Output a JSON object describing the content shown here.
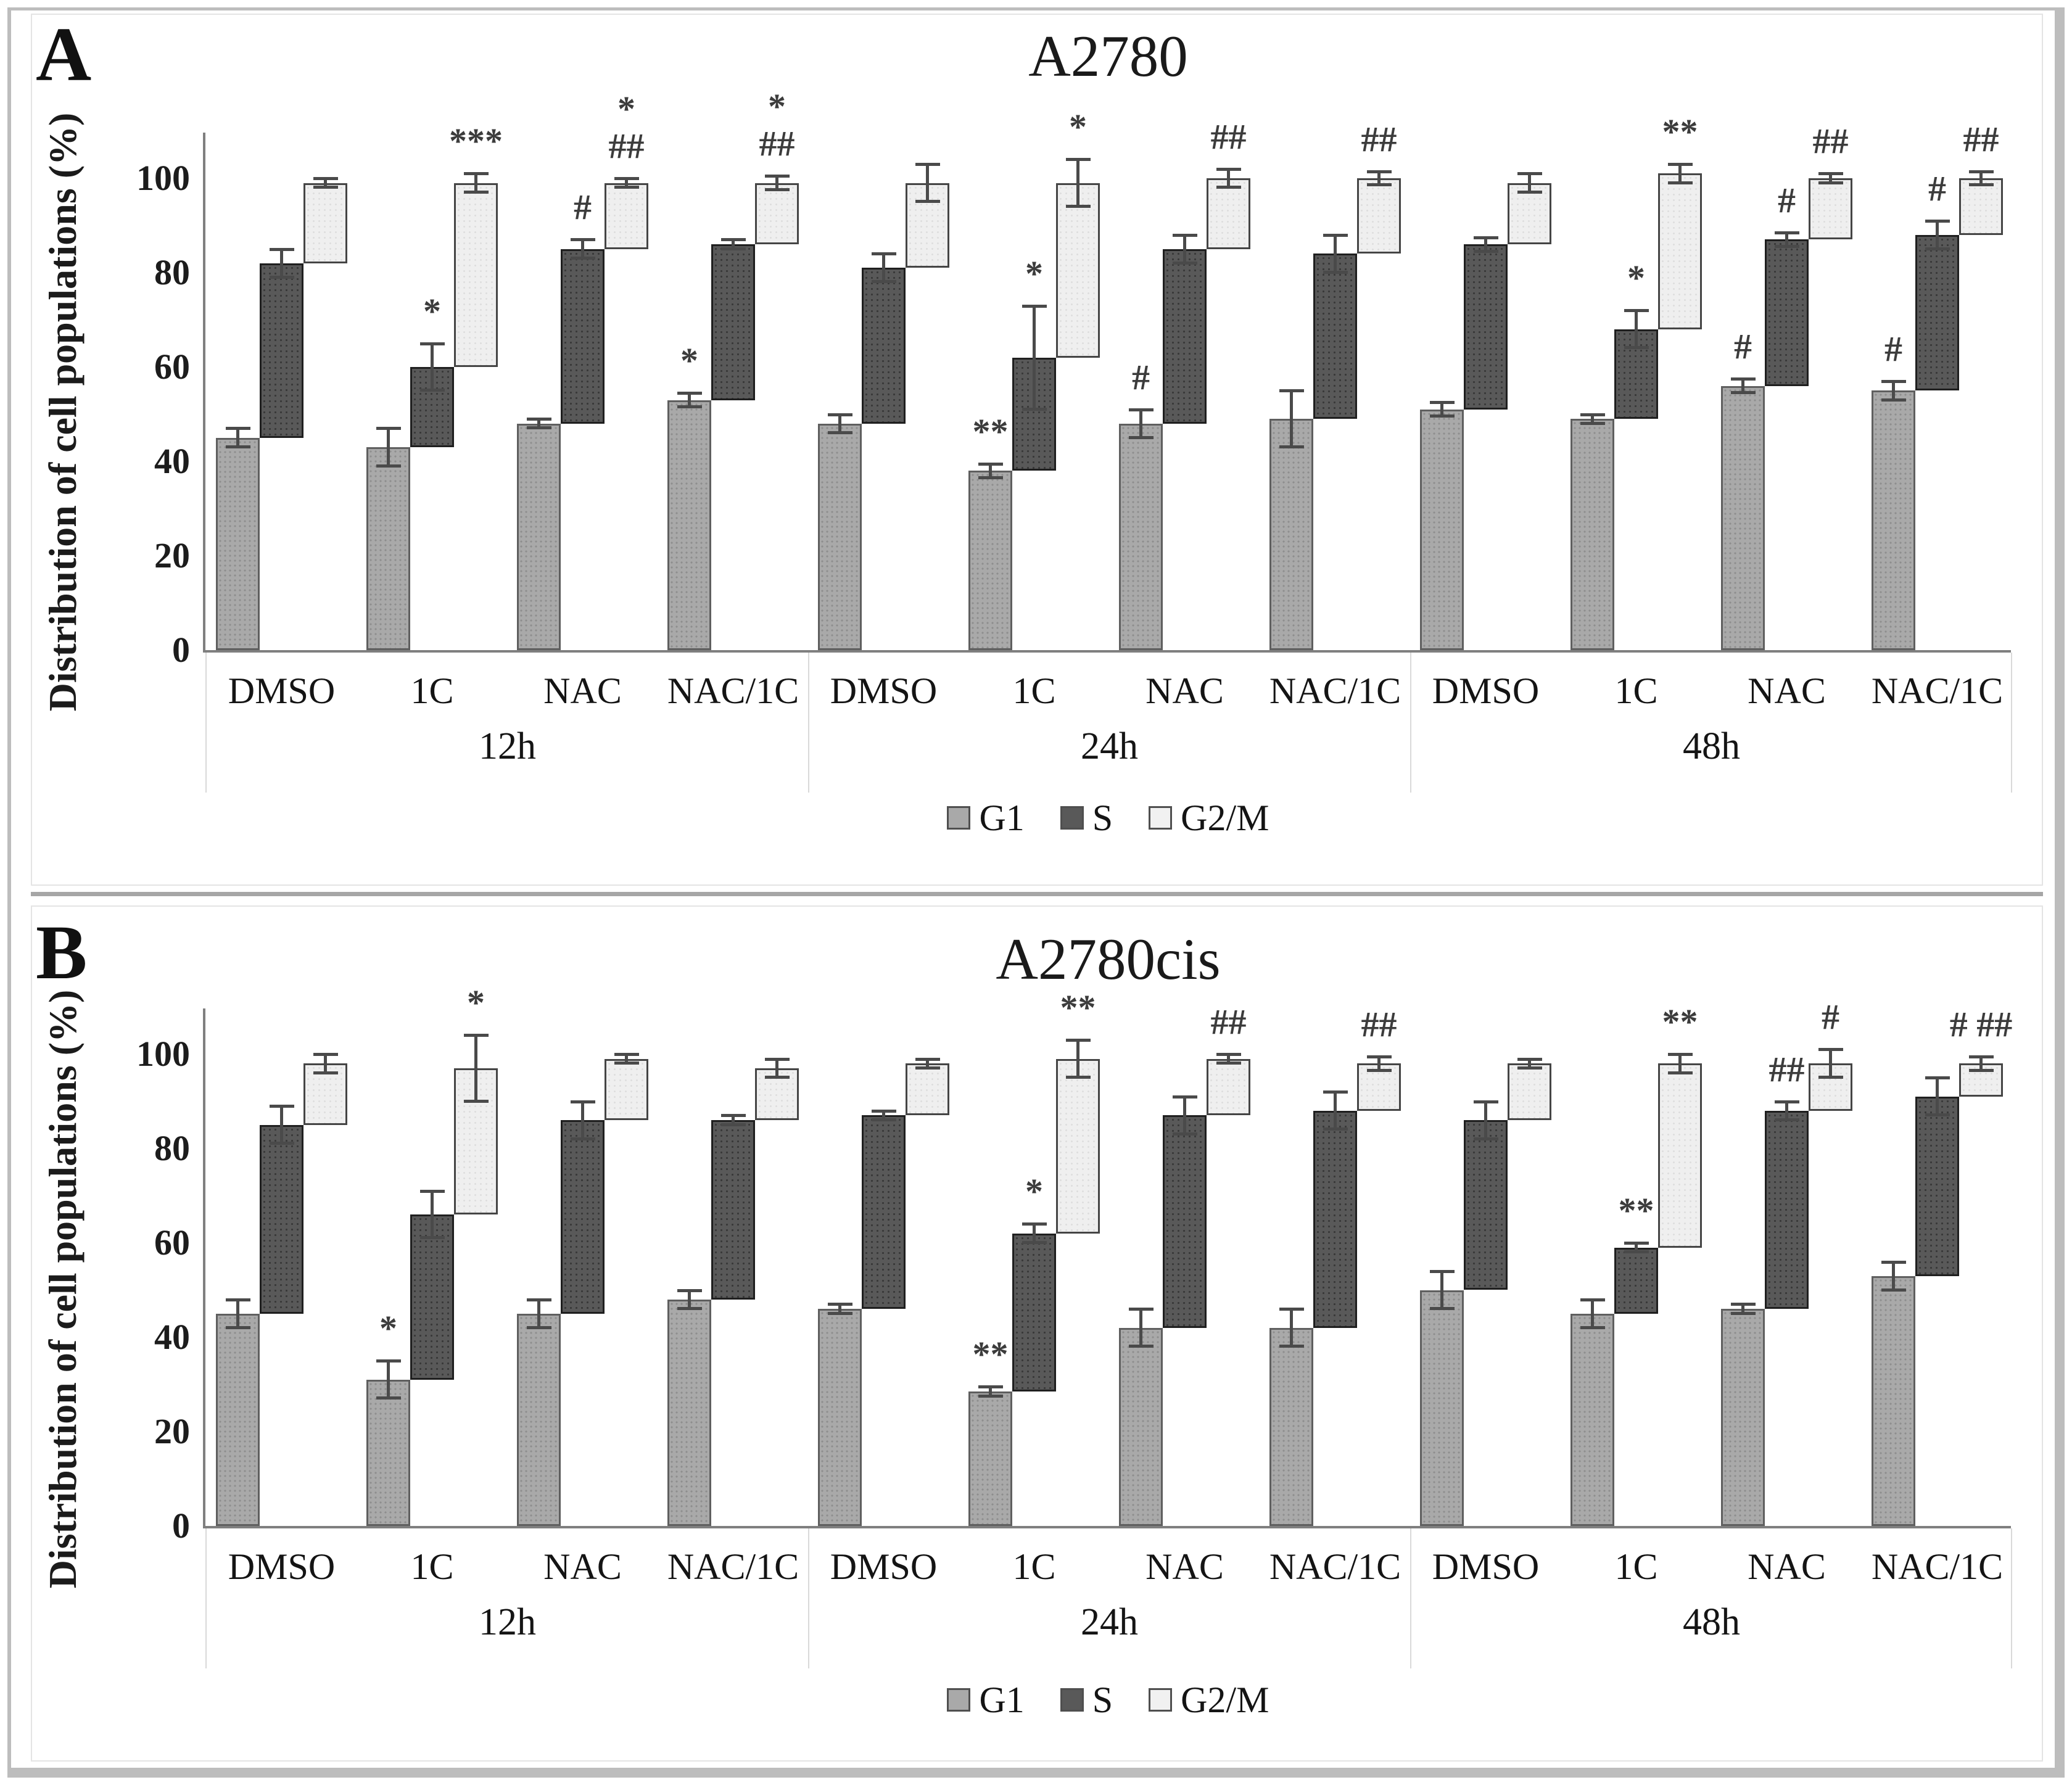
{
  "colors": {
    "g1_fill": "#a9a9a9",
    "g1_border": "#5f5f5f",
    "s_fill": "#595959",
    "s_border": "#1f1f1f",
    "g2m_fill": "#efefef",
    "g2m_border": "#454545",
    "error_bar": "#4a4a4a",
    "annotation": "#3c3c3c",
    "axis": "#7f7f7f",
    "text": "#1b1b1b",
    "separator": "#d9d9d9"
  },
  "chart_data": [
    {
      "type": "bar",
      "variant": "stepped-cumulative",
      "panel_label": "A",
      "title": "A2780",
      "ylabel": "Distribution of cell populations (%)",
      "xlabel": "",
      "ylim": [
        0,
        100
      ],
      "yticks": [
        0,
        20,
        40,
        60,
        80,
        100
      ],
      "grid": false,
      "legend_position": "bottom",
      "legend_items": [
        {
          "key": "g1",
          "label": "G1"
        },
        {
          "key": "s",
          "label": "S"
        },
        {
          "key": "g2m",
          "label": "G2/M"
        }
      ],
      "time_groups": [
        {
          "label": "12h",
          "treatments": [
            {
              "label": "DMSO",
              "segments": {
                "g1": {
                  "value": 45,
                  "err": 2,
                  "sig": []
                },
                "s": {
                  "value": 82,
                  "err": 3,
                  "sig": []
                },
                "g2m": {
                  "value": 99,
                  "err": 1,
                  "sig": []
                }
              }
            },
            {
              "label": "1C",
              "segments": {
                "g1": {
                  "value": 43,
                  "err": 4,
                  "sig": []
                },
                "s": {
                  "value": 60,
                  "err": 5,
                  "sig": [
                    "*"
                  ]
                },
                "g2m": {
                  "value": 99,
                  "err": 2,
                  "sig": [
                    "***"
                  ]
                }
              }
            },
            {
              "label": "NAC",
              "segments": {
                "g1": {
                  "value": 48,
                  "err": 1,
                  "sig": []
                },
                "s": {
                  "value": 85,
                  "err": 2,
                  "sig": [
                    "#"
                  ]
                },
                "g2m": {
                  "value": 99,
                  "err": 1,
                  "sig": [
                    "*",
                    "##"
                  ]
                }
              }
            },
            {
              "label": "NAC/1C",
              "segments": {
                "g1": {
                  "value": 53,
                  "err": 1.5,
                  "sig": [
                    "*"
                  ]
                },
                "s": {
                  "value": 86,
                  "err": 1,
                  "sig": []
                },
                "g2m": {
                  "value": 99,
                  "err": 1.5,
                  "sig": [
                    "*",
                    "##"
                  ]
                }
              }
            }
          ]
        },
        {
          "label": "24h",
          "treatments": [
            {
              "label": "DMSO",
              "segments": {
                "g1": {
                  "value": 48,
                  "err": 2,
                  "sig": []
                },
                "s": {
                  "value": 81,
                  "err": 3,
                  "sig": []
                },
                "g2m": {
                  "value": 99,
                  "err": 4,
                  "sig": []
                }
              }
            },
            {
              "label": "1C",
              "segments": {
                "g1": {
                  "value": 38,
                  "err": 1.5,
                  "sig": [
                    "**"
                  ]
                },
                "s": {
                  "value": 62,
                  "err": 11,
                  "sig": [
                    "*"
                  ]
                },
                "g2m": {
                  "value": 99,
                  "err": 5,
                  "sig": [
                    "*"
                  ]
                }
              }
            },
            {
              "label": "NAC",
              "segments": {
                "g1": {
                  "value": 48,
                  "err": 3,
                  "sig": [
                    "#"
                  ]
                },
                "s": {
                  "value": 85,
                  "err": 3,
                  "sig": []
                },
                "g2m": {
                  "value": 100,
                  "err": 2,
                  "sig": [
                    "##"
                  ]
                }
              }
            },
            {
              "label": "NAC/1C",
              "segments": {
                "g1": {
                  "value": 49,
                  "err": 6,
                  "sig": []
                },
                "s": {
                  "value": 84,
                  "err": 4,
                  "sig": []
                },
                "g2m": {
                  "value": 100,
                  "err": 1.5,
                  "sig": [
                    "##"
                  ]
                }
              }
            }
          ]
        },
        {
          "label": "48h",
          "treatments": [
            {
              "label": "DMSO",
              "segments": {
                "g1": {
                  "value": 51,
                  "err": 1.5,
                  "sig": []
                },
                "s": {
                  "value": 86,
                  "err": 1.5,
                  "sig": []
                },
                "g2m": {
                  "value": 99,
                  "err": 2,
                  "sig": []
                }
              }
            },
            {
              "label": "1C",
              "segments": {
                "g1": {
                  "value": 49,
                  "err": 1,
                  "sig": []
                },
                "s": {
                  "value": 68,
                  "err": 4,
                  "sig": [
                    "*"
                  ]
                },
                "g2m": {
                  "value": 101,
                  "err": 2,
                  "sig": [
                    "**"
                  ]
                }
              }
            },
            {
              "label": "NAC",
              "segments": {
                "g1": {
                  "value": 56,
                  "err": 1.5,
                  "sig": [
                    "#"
                  ]
                },
                "s": {
                  "value": 87,
                  "err": 1.5,
                  "sig": [
                    "#"
                  ]
                },
                "g2m": {
                  "value": 100,
                  "err": 1,
                  "sig": [
                    "##"
                  ]
                }
              }
            },
            {
              "label": "NAC/1C",
              "segments": {
                "g1": {
                  "value": 55,
                  "err": 2,
                  "sig": [
                    "#"
                  ]
                },
                "s": {
                  "value": 88,
                  "err": 3,
                  "sig": [
                    "#"
                  ]
                },
                "g2m": {
                  "value": 100,
                  "err": 1.5,
                  "sig": [
                    "##"
                  ]
                }
              }
            }
          ]
        }
      ]
    },
    {
      "type": "bar",
      "variant": "stepped-cumulative",
      "panel_label": "B",
      "title": "A2780cis",
      "ylabel": "Distribution of cell populations (%)",
      "xlabel": "",
      "ylim": [
        0,
        100
      ],
      "yticks": [
        0,
        20,
        40,
        60,
        80,
        100
      ],
      "grid": false,
      "legend_position": "bottom",
      "legend_items": [
        {
          "key": "g1",
          "label": "G1"
        },
        {
          "key": "s",
          "label": "S"
        },
        {
          "key": "g2m",
          "label": "G2/M"
        }
      ],
      "time_groups": [
        {
          "label": "12h",
          "treatments": [
            {
              "label": "DMSO",
              "segments": {
                "g1": {
                  "value": 45,
                  "err": 3,
                  "sig": []
                },
                "s": {
                  "value": 85,
                  "err": 4,
                  "sig": []
                },
                "g2m": {
                  "value": 98,
                  "err": 2,
                  "sig": []
                }
              }
            },
            {
              "label": "1C",
              "segments": {
                "g1": {
                  "value": 31,
                  "err": 4,
                  "sig": [
                    "*"
                  ]
                },
                "s": {
                  "value": 66,
                  "err": 5,
                  "sig": []
                },
                "g2m": {
                  "value": 97,
                  "err": 7,
                  "sig": [
                    "*"
                  ]
                }
              }
            },
            {
              "label": "NAC",
              "segments": {
                "g1": {
                  "value": 45,
                  "err": 3,
                  "sig": []
                },
                "s": {
                  "value": 86,
                  "err": 4,
                  "sig": []
                },
                "g2m": {
                  "value": 99,
                  "err": 1,
                  "sig": []
                }
              }
            },
            {
              "label": "NAC/1C",
              "segments": {
                "g1": {
                  "value": 48,
                  "err": 2,
                  "sig": []
                },
                "s": {
                  "value": 86,
                  "err": 1,
                  "sig": []
                },
                "g2m": {
                  "value": 97,
                  "err": 2,
                  "sig": []
                }
              }
            }
          ]
        },
        {
          "label": "24h",
          "treatments": [
            {
              "label": "DMSO",
              "segments": {
                "g1": {
                  "value": 46,
                  "err": 1,
                  "sig": []
                },
                "s": {
                  "value": 87,
                  "err": 1,
                  "sig": []
                },
                "g2m": {
                  "value": 98,
                  "err": 1,
                  "sig": []
                }
              }
            },
            {
              "label": "1C",
              "segments": {
                "g1": {
                  "value": 28.5,
                  "err": 1,
                  "sig": [
                    "**"
                  ]
                },
                "s": {
                  "value": 62,
                  "err": 2,
                  "sig": [
                    "*"
                  ]
                },
                "g2m": {
                  "value": 99,
                  "err": 4,
                  "sig": [
                    "**"
                  ]
                }
              }
            },
            {
              "label": "NAC",
              "segments": {
                "g1": {
                  "value": 42,
                  "err": 4,
                  "sig": []
                },
                "s": {
                  "value": 87,
                  "err": 4,
                  "sig": []
                },
                "g2m": {
                  "value": 99,
                  "err": 1,
                  "sig": [
                    "##"
                  ]
                }
              }
            },
            {
              "label": "NAC/1C",
              "segments": {
                "g1": {
                  "value": 42,
                  "err": 4,
                  "sig": []
                },
                "s": {
                  "value": 88,
                  "err": 4,
                  "sig": []
                },
                "g2m": {
                  "value": 98,
                  "err": 1.5,
                  "sig": [
                    "##"
                  ]
                }
              }
            }
          ]
        },
        {
          "label": "48h",
          "treatments": [
            {
              "label": "DMSO",
              "segments": {
                "g1": {
                  "value": 50,
                  "err": 4,
                  "sig": []
                },
                "s": {
                  "value": 86,
                  "err": 4,
                  "sig": []
                },
                "g2m": {
                  "value": 98,
                  "err": 1,
                  "sig": []
                }
              }
            },
            {
              "label": "1C",
              "segments": {
                "g1": {
                  "value": 45,
                  "err": 3,
                  "sig": []
                },
                "s": {
                  "value": 59,
                  "err": 1,
                  "sig": [
                    "**"
                  ]
                },
                "g2m": {
                  "value": 98,
                  "err": 2,
                  "sig": [
                    "**"
                  ]
                }
              }
            },
            {
              "label": "NAC",
              "segments": {
                "g1": {
                  "value": 46,
                  "err": 1,
                  "sig": []
                },
                "s": {
                  "value": 88,
                  "err": 2,
                  "sig": [
                    "##"
                  ]
                },
                "g2m": {
                  "value": 98,
                  "err": 3,
                  "sig": [
                    "#"
                  ]
                }
              }
            },
            {
              "label": "NAC/1C",
              "segments": {
                "g1": {
                  "value": 53,
                  "err": 3,
                  "sig": []
                },
                "s": {
                  "value": 91,
                  "err": 4,
                  "sig": []
                },
                "g2m": {
                  "value": 98,
                  "err": 1.5,
                  "sig": [
                    "# ##"
                  ]
                }
              }
            }
          ]
        }
      ]
    }
  ]
}
